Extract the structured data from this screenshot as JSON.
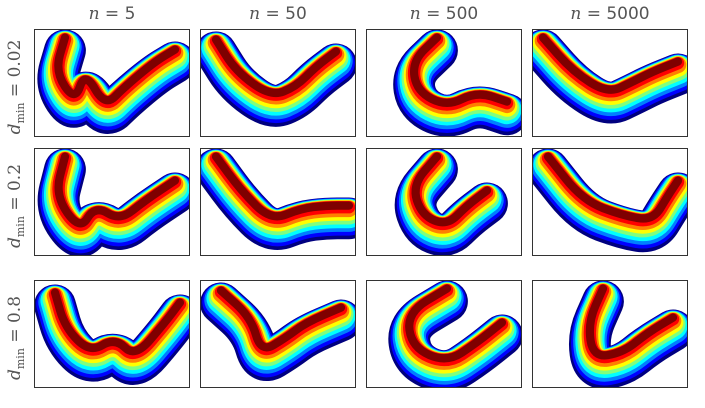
{
  "columns": [
    {
      "label": "n = 5"
    },
    {
      "label": "n = 50"
    },
    {
      "label": "n = 500"
    },
    {
      "label": "n = 5000"
    }
  ],
  "rows": [
    {
      "label": "d_min = 0.02",
      "text": "dmin = 0.02"
    },
    {
      "label": "d_min = 0.2",
      "text": "dmin = 0.2"
    },
    {
      "label": "d_min = 0.8",
      "text": "dmin = 0.8"
    }
  ],
  "colormap": [
    "#00007f",
    "#0000ff",
    "#007fff",
    "#00ffff",
    "#7fff7f",
    "#ffff00",
    "#ff7f00",
    "#ff0000",
    "#7f0000"
  ]
}
